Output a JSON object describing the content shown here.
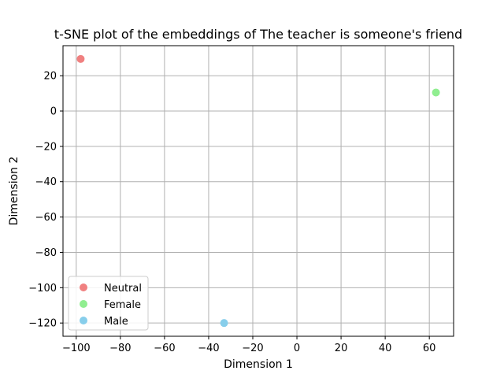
{
  "chart_data": {
    "type": "scatter",
    "title": "t-SNE plot of the embeddings of The teacher is someone's friend",
    "xlabel": "Dimension 1",
    "ylabel": "Dimension 2",
    "xlim": [
      -106,
      71
    ],
    "ylim": [
      -127.5,
      37
    ],
    "xticks": [
      -100,
      -80,
      -60,
      -40,
      -20,
      0,
      20,
      40,
      60
    ],
    "yticks": [
      -120,
      -100,
      -80,
      -60,
      -40,
      -20,
      0,
      20
    ],
    "grid": true,
    "legend_position": "lower-left",
    "series": [
      {
        "name": "Neutral",
        "color": "#f08080",
        "points": [
          {
            "x": -98,
            "y": 29.5
          }
        ]
      },
      {
        "name": "Female",
        "color": "#90ee90",
        "points": [
          {
            "x": 63,
            "y": 10.5
          }
        ]
      },
      {
        "name": "Male",
        "color": "#87ceeb",
        "points": [
          {
            "x": -33,
            "y": -120
          }
        ]
      }
    ]
  }
}
